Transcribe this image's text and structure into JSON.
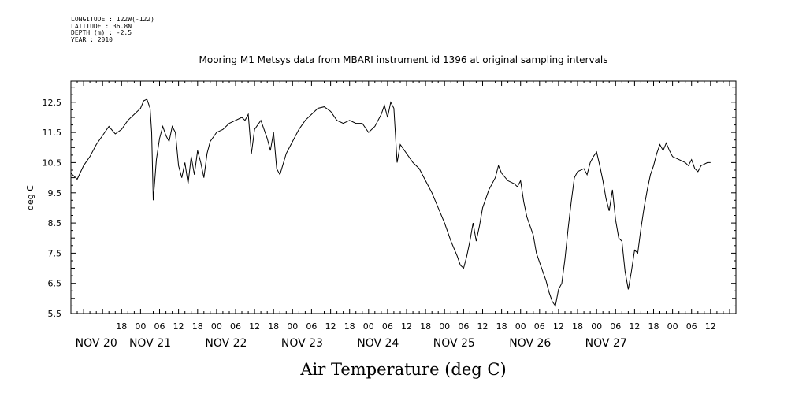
{
  "header": {
    "longitude": "LONGITUDE : 122W(-122)",
    "latitude": "LATITUDE : 36.8N",
    "depth": "DEPTH (m) : -2.5",
    "year": "YEAR : 2010"
  },
  "chart_data": {
    "type": "line",
    "title": "Mooring M1 Metsys data from MBARI instrument id 1396 at original sampling intervals",
    "xlabel": "Air Temperature (deg C)",
    "ylabel": "deg C",
    "ylim": [
      5.5,
      13.2
    ],
    "xlim_hours": [
      -22,
      188
    ],
    "grid": false,
    "y_ticks": [
      "5.5",
      "6.5",
      "7.5",
      "8.5",
      "9.5",
      "10.5",
      "11.5",
      "12.5"
    ],
    "x_hour_ticks": [
      {
        "h": -6,
        "label": "18"
      },
      {
        "h": 0,
        "label": "00"
      },
      {
        "h": 6,
        "label": "06"
      },
      {
        "h": 12,
        "label": "12"
      },
      {
        "h": 18,
        "label": "18"
      },
      {
        "h": 24,
        "label": "00"
      },
      {
        "h": 30,
        "label": "06"
      },
      {
        "h": 36,
        "label": "12"
      },
      {
        "h": 42,
        "label": "18"
      },
      {
        "h": 48,
        "label": "00"
      },
      {
        "h": 54,
        "label": "06"
      },
      {
        "h": 60,
        "label": "12"
      },
      {
        "h": 66,
        "label": "18"
      },
      {
        "h": 72,
        "label": "00"
      },
      {
        "h": 78,
        "label": "06"
      },
      {
        "h": 84,
        "label": "12"
      },
      {
        "h": 90,
        "label": "18"
      },
      {
        "h": 96,
        "label": "00"
      },
      {
        "h": 102,
        "label": "06"
      },
      {
        "h": 108,
        "label": "12"
      },
      {
        "h": 114,
        "label": "18"
      },
      {
        "h": 120,
        "label": "00"
      },
      {
        "h": 126,
        "label": "06"
      },
      {
        "h": 132,
        "label": "12"
      },
      {
        "h": 138,
        "label": "18"
      },
      {
        "h": 144,
        "label": "00"
      },
      {
        "h": 150,
        "label": "06"
      },
      {
        "h": 156,
        "label": "12"
      },
      {
        "h": 162,
        "label": "18"
      },
      {
        "h": 168,
        "label": "00"
      },
      {
        "h": 174,
        "label": "06"
      },
      {
        "h": 180,
        "label": "12"
      }
    ],
    "x_day_labels": [
      {
        "h": -14,
        "label": "NOV 20"
      },
      {
        "h": 3,
        "label": "NOV 21"
      },
      {
        "h": 27,
        "label": "NOV 22"
      },
      {
        "h": 51,
        "label": "NOV 23"
      },
      {
        "h": 75,
        "label": "NOV 24"
      },
      {
        "h": 99,
        "label": "NOV 25"
      },
      {
        "h": 123,
        "label": "NOV 26"
      },
      {
        "h": 147,
        "label": "NOV 27"
      }
    ],
    "series": [
      {
        "values": [
          [
            -22,
            10.15
          ],
          [
            -20,
            9.95
          ],
          [
            -18,
            10.4
          ],
          [
            -16,
            10.7
          ],
          [
            -14,
            11.1
          ],
          [
            -12,
            11.4
          ],
          [
            -10,
            11.7
          ],
          [
            -8,
            11.45
          ],
          [
            -6,
            11.6
          ],
          [
            -4,
            11.9
          ],
          [
            -2,
            12.1
          ],
          [
            0,
            12.3
          ],
          [
            1,
            12.55
          ],
          [
            2,
            12.6
          ],
          [
            3,
            12.3
          ],
          [
            3.5,
            11.5
          ],
          [
            4,
            9.25
          ],
          [
            5,
            10.6
          ],
          [
            6,
            11.3
          ],
          [
            7,
            11.7
          ],
          [
            8,
            11.4
          ],
          [
            9,
            11.2
          ],
          [
            10,
            11.7
          ],
          [
            11,
            11.5
          ],
          [
            12,
            10.4
          ],
          [
            13,
            10.0
          ],
          [
            14,
            10.5
          ],
          [
            15,
            9.8
          ],
          [
            16,
            10.7
          ],
          [
            17,
            10.1
          ],
          [
            18,
            10.9
          ],
          [
            19,
            10.5
          ],
          [
            20,
            10.0
          ],
          [
            21,
            10.8
          ],
          [
            22,
            11.2
          ],
          [
            24,
            11.5
          ],
          [
            26,
            11.6
          ],
          [
            28,
            11.8
          ],
          [
            30,
            11.9
          ],
          [
            32,
            12.0
          ],
          [
            33,
            11.9
          ],
          [
            34,
            12.1
          ],
          [
            35,
            10.8
          ],
          [
            36,
            11.6
          ],
          [
            38,
            11.9
          ],
          [
            40,
            11.3
          ],
          [
            41,
            10.9
          ],
          [
            42,
            11.5
          ],
          [
            43,
            10.3
          ],
          [
            44,
            10.1
          ],
          [
            46,
            10.8
          ],
          [
            48,
            11.2
          ],
          [
            50,
            11.6
          ],
          [
            52,
            11.9
          ],
          [
            54,
            12.1
          ],
          [
            56,
            12.3
          ],
          [
            58,
            12.35
          ],
          [
            60,
            12.2
          ],
          [
            62,
            11.9
          ],
          [
            64,
            11.8
          ],
          [
            66,
            11.9
          ],
          [
            68,
            11.8
          ],
          [
            70,
            11.8
          ],
          [
            72,
            11.5
          ],
          [
            74,
            11.7
          ],
          [
            76,
            12.1
          ],
          [
            77,
            12.4
          ],
          [
            78,
            12.0
          ],
          [
            79,
            12.5
          ],
          [
            80,
            12.3
          ],
          [
            81,
            10.5
          ],
          [
            82,
            11.1
          ],
          [
            84,
            10.8
          ],
          [
            86,
            10.5
          ],
          [
            88,
            10.3
          ],
          [
            90,
            9.9
          ],
          [
            92,
            9.5
          ],
          [
            94,
            9.0
          ],
          [
            96,
            8.5
          ],
          [
            98,
            7.9
          ],
          [
            100,
            7.4
          ],
          [
            101,
            7.1
          ],
          [
            102,
            7.0
          ],
          [
            103,
            7.4
          ],
          [
            104,
            7.9
          ],
          [
            105,
            8.5
          ],
          [
            106,
            7.9
          ],
          [
            107,
            8.4
          ],
          [
            108,
            9.0
          ],
          [
            109,
            9.3
          ],
          [
            110,
            9.6
          ],
          [
            111,
            9.8
          ],
          [
            112,
            10.0
          ],
          [
            113,
            10.4
          ],
          [
            114,
            10.15
          ],
          [
            116,
            9.9
          ],
          [
            118,
            9.8
          ],
          [
            119,
            9.7
          ],
          [
            120,
            9.9
          ],
          [
            121,
            9.2
          ],
          [
            122,
            8.7
          ],
          [
            124,
            8.1
          ],
          [
            125,
            7.5
          ],
          [
            126,
            7.2
          ],
          [
            127,
            6.9
          ],
          [
            128,
            6.6
          ],
          [
            129,
            6.2
          ],
          [
            130,
            5.9
          ],
          [
            131,
            5.75
          ],
          [
            132,
            6.3
          ],
          [
            133,
            6.5
          ],
          [
            134,
            7.3
          ],
          [
            135,
            8.3
          ],
          [
            136,
            9.2
          ],
          [
            137,
            10.0
          ],
          [
            138,
            10.2
          ],
          [
            140,
            10.3
          ],
          [
            141,
            10.1
          ],
          [
            142,
            10.5
          ],
          [
            143,
            10.7
          ],
          [
            144,
            10.85
          ],
          [
            145,
            10.4
          ],
          [
            146,
            9.9
          ],
          [
            147,
            9.3
          ],
          [
            148,
            8.9
          ],
          [
            149,
            9.6
          ],
          [
            150,
            8.6
          ],
          [
            151,
            8.0
          ],
          [
            152,
            7.9
          ],
          [
            153,
            6.9
          ],
          [
            154,
            6.3
          ],
          [
            155,
            6.9
          ],
          [
            156,
            7.6
          ],
          [
            157,
            7.5
          ],
          [
            158,
            8.3
          ],
          [
            159,
            9.0
          ],
          [
            160,
            9.6
          ],
          [
            161,
            10.1
          ],
          [
            162,
            10.4
          ],
          [
            163,
            10.8
          ],
          [
            164,
            11.1
          ],
          [
            165,
            10.9
          ],
          [
            166,
            11.15
          ],
          [
            167,
            10.9
          ],
          [
            168,
            10.7
          ],
          [
            170,
            10.6
          ],
          [
            172,
            10.5
          ],
          [
            173,
            10.4
          ],
          [
            174,
            10.6
          ],
          [
            175,
            10.3
          ],
          [
            176,
            10.2
          ],
          [
            177,
            10.4
          ],
          [
            178,
            10.45
          ],
          [
            179,
            10.5
          ],
          [
            180,
            10.5
          ]
        ]
      }
    ]
  }
}
